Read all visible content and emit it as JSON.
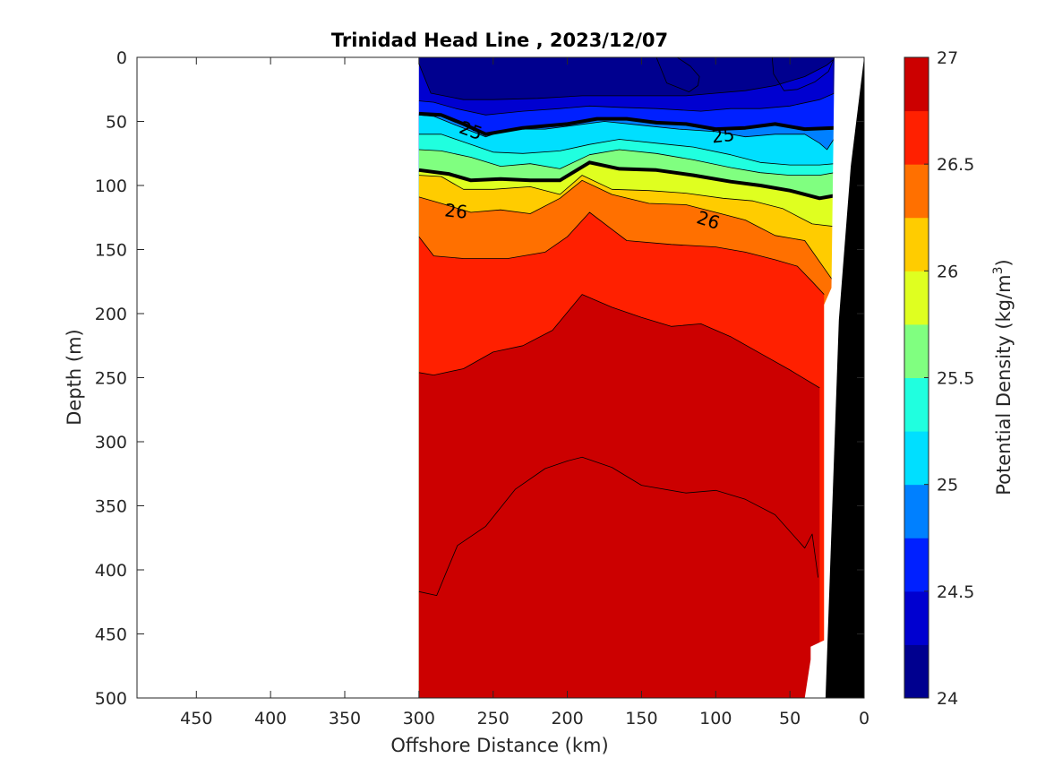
{
  "chart_data": {
    "type": "heatmap",
    "subtype": "filled-contour-section",
    "title": "Trinidad Head Line , 2023/12/07",
    "xlabel": "Offshore Distance (km)",
    "ylabel": "Depth (m)",
    "colorbar_label": "Potential Density (kg/m",
    "colorbar_label_sup": "3",
    "colorbar_label_close": ")",
    "xlim": [
      490,
      0
    ],
    "ylim": [
      0,
      500
    ],
    "x_reversed": true,
    "y_reversed": true,
    "xticks": [
      450,
      400,
      350,
      300,
      250,
      200,
      150,
      100,
      50,
      0
    ],
    "yticks": [
      0,
      50,
      100,
      150,
      200,
      250,
      300,
      350,
      400,
      450,
      500
    ],
    "clim": [
      24,
      27
    ],
    "cticks": [
      24,
      24.5,
      25,
      25.5,
      26,
      26.5,
      27
    ],
    "levels": [
      24,
      24.25,
      24.5,
      24.75,
      25,
      25.25,
      25.5,
      25.75,
      26,
      26.25,
      26.5,
      26.75,
      27
    ],
    "level_colors": [
      "#00008f",
      "#0000d0",
      "#0020ff",
      "#0080ff",
      "#00dfff",
      "#20ffdf",
      "#80ff80",
      "#dfff20",
      "#ffcc00",
      "#ff7000",
      "#ff2000",
      "#cc0000"
    ],
    "bold_contours": [
      25,
      26
    ],
    "contour_labels": [
      {
        "text": "25",
        "x": 265,
        "y": 57,
        "angle": 20
      },
      {
        "text": "25",
        "x": 95,
        "y": 61,
        "angle": -6
      },
      {
        "text": "26",
        "x": 275,
        "y": 120,
        "angle": 6
      },
      {
        "text": "26",
        "x": 105,
        "y": 127,
        "angle": 18
      }
    ],
    "isopycnals": [
      {
        "value": 24.25,
        "x": [
          140,
          133,
          118,
          112,
          111,
          117,
          126
        ],
        "y": [
          0,
          20,
          27,
          22,
          15,
          7,
          0
        ]
      },
      {
        "value": 24.25,
        "x": [
          62,
          61,
          54,
          45,
          33,
          24,
          20
        ],
        "y": [
          0,
          13,
          26,
          25,
          19,
          11,
          0
        ]
      },
      {
        "value": 24.5,
        "x": [
          300,
          292,
          270,
          250,
          220,
          190,
          170,
          150,
          120,
          100,
          80,
          60,
          40,
          25,
          21
        ],
        "y": [
          5,
          28,
          33,
          33,
          32,
          30,
          30,
          30,
          30,
          28,
          26,
          22,
          15,
          6,
          2
        ]
      },
      {
        "value": 24.75,
        "x": [
          300,
          290,
          275,
          255,
          230,
          205,
          185,
          165,
          140,
          110,
          90,
          70,
          50,
          30,
          20
        ],
        "y": [
          34,
          35,
          40,
          45,
          42,
          40,
          38,
          39,
          40,
          42,
          40,
          40,
          38,
          33,
          28
        ]
      },
      {
        "value": 25,
        "x": [
          300,
          285,
          270,
          255,
          230,
          200,
          180,
          160,
          140,
          120,
          100,
          80,
          60,
          40,
          20
        ],
        "y": [
          44,
          45,
          52,
          60,
          55,
          52,
          48,
          48,
          51,
          52,
          56,
          55,
          52,
          56,
          55
        ]
      },
      {
        "value": 25.25,
        "x": [
          300,
          290,
          275,
          255,
          240,
          215,
          195,
          175,
          150,
          125,
          100,
          80,
          60,
          40,
          30,
          25,
          20
        ],
        "y": [
          45,
          46,
          53,
          62,
          56,
          56,
          53,
          50,
          53,
          56,
          58,
          62,
          60,
          60,
          67,
          72,
          63
        ]
      },
      {
        "value": 25.5,
        "x": [
          300,
          285,
          270,
          250,
          230,
          205,
          185,
          165,
          140,
          115,
          90,
          70,
          50,
          30,
          20
        ],
        "y": [
          60,
          60,
          66,
          74,
          75,
          73,
          68,
          64,
          67,
          70,
          76,
          82,
          84,
          84,
          83
        ]
      },
      {
        "value": 25.75,
        "x": [
          300,
          285,
          265,
          245,
          225,
          205,
          185,
          165,
          140,
          115,
          90,
          70,
          50,
          30,
          20
        ],
        "y": [
          72,
          73,
          78,
          85,
          83,
          87,
          76,
          72,
          75,
          80,
          86,
          90,
          92,
          92,
          90
        ]
      },
      {
        "value": 26,
        "x": [
          300,
          280,
          265,
          245,
          225,
          205,
          185,
          165,
          140,
          115,
          90,
          70,
          50,
          30,
          20
        ],
        "y": [
          88,
          91,
          96,
          95,
          96,
          96,
          82,
          87,
          88,
          92,
          97,
          100,
          104,
          110,
          108
        ]
      },
      {
        "value": 26.25,
        "x": [
          300,
          285,
          270,
          250,
          225,
          205,
          190,
          170,
          145,
          120,
          95,
          75,
          55,
          35,
          20
        ],
        "y": [
          92,
          93,
          103,
          103,
          101,
          107,
          92,
          103,
          104,
          106,
          110,
          112,
          118,
          130,
          132
        ]
      },
      {
        "value": 26.5,
        "x": [
          300,
          285,
          265,
          245,
          225,
          205,
          190,
          170,
          145,
          120,
          100,
          80,
          60,
          40,
          20
        ],
        "y": [
          109,
          114,
          121,
          119,
          122,
          110,
          96,
          107,
          114,
          115,
          121,
          127,
          139,
          143,
          176
        ]
      },
      {
        "value": 26.75,
        "x": [
          300,
          290,
          270,
          240,
          215,
          200,
          185,
          160,
          130,
          100,
          80,
          60,
          45,
          35,
          27
        ],
        "y": [
          140,
          155,
          157,
          157,
          152,
          140,
          121,
          143,
          146,
          148,
          152,
          158,
          163,
          175,
          185
        ]
      },
      {
        "value": 27,
        "x": [
          300,
          290,
          270,
          250,
          230,
          210,
          190,
          170,
          150,
          130,
          110,
          90,
          70,
          50,
          30
        ],
        "y": [
          246,
          248,
          243,
          230,
          225,
          213,
          185,
          195,
          203,
          210,
          208,
          218,
          231,
          244,
          258
        ]
      },
      {
        "value": 27.25,
        "x": [
          300,
          288,
          282,
          274,
          255,
          235,
          215,
          200,
          190,
          170,
          150,
          120,
          100,
          80,
          60,
          40,
          35,
          31
        ],
        "y": [
          417,
          420,
          403,
          381,
          366,
          337,
          321,
          315,
          312,
          320,
          334,
          340,
          338,
          345,
          357,
          383,
          372,
          406
        ]
      }
    ],
    "coastline_x_at_surface": 0,
    "land_polygon": [
      [
        0,
        0
      ],
      [
        9,
        85
      ],
      [
        17,
        205
      ],
      [
        26,
        500
      ],
      [
        0,
        500
      ]
    ],
    "data_mask_right": [
      [
        20,
        0
      ],
      [
        22,
        180
      ],
      [
        27,
        193
      ],
      [
        27,
        455
      ],
      [
        36,
        460
      ],
      [
        36,
        470
      ],
      [
        40,
        500
      ]
    ]
  }
}
